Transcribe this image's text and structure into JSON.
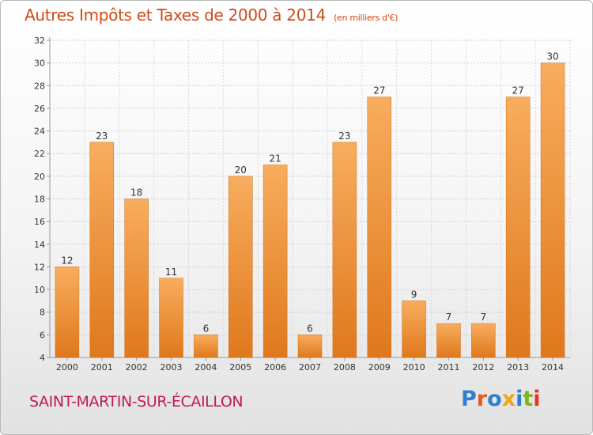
{
  "title": "Autres Impôts et Taxes de 2000 à 2014",
  "unit_label": "(en milliers d'€)",
  "commune": "SAINT-MARTIN-SUR-ÉCAILLON",
  "logo": {
    "text": "Proxiti",
    "colors": [
      "#2e7fd0",
      "#e65a1e",
      "#2e7fd0",
      "#f2a316",
      "#2e7fd0",
      "#7ab51d",
      "#e6332a"
    ]
  },
  "colors": {
    "bar_light": "#f6a85a",
    "bar_dark": "#e07a1e",
    "title": "#d14a1a",
    "commune": "#c2185b"
  },
  "chart_data": {
    "type": "bar",
    "categories": [
      "2000",
      "2001",
      "2002",
      "2003",
      "2004",
      "2005",
      "2006",
      "2007",
      "2008",
      "2009",
      "2010",
      "2011",
      "2012",
      "2013",
      "2014"
    ],
    "values": [
      12,
      23,
      18,
      11,
      6,
      20,
      21,
      6,
      23,
      27,
      9,
      7,
      7,
      27,
      30
    ],
    "ylim": [
      4,
      32
    ],
    "yticks": [
      4,
      6,
      8,
      10,
      12,
      14,
      16,
      18,
      20,
      22,
      24,
      26,
      28,
      30,
      32
    ],
    "grid": true,
    "xlabel": "",
    "ylabel": ""
  }
}
